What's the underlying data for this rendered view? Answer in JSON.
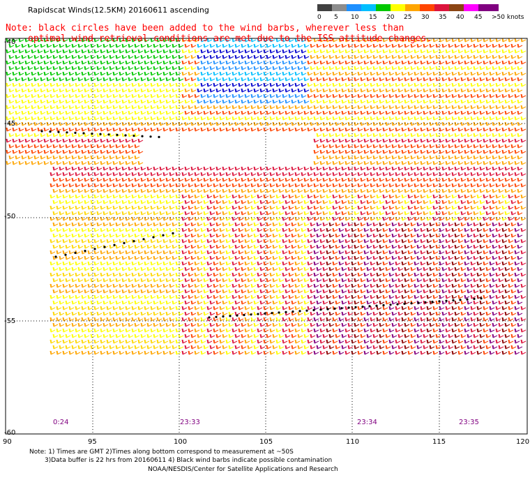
{
  "header": {
    "title": "Rapidscat Winds(12.5KM) 20160611 ascending",
    "note_line1": "Note: black circles have been added to the wind barbs, wherever less than",
    "note_line2": "optimal wind retrieval conditions are met due to the ISS attitude changes."
  },
  "colorbar": {
    "labels": [
      "0",
      "5",
      "10",
      "15",
      "20",
      "25",
      "30",
      "35",
      "40",
      "45",
      ">50 knots"
    ],
    "colors": [
      "#404040",
      "#8c8c8c",
      "#1e90ff",
      "#00bfff",
      "#00c800",
      "#ffff00",
      "#ffa500",
      "#ff4500",
      "#dc143c",
      "#8b4513",
      "#ff00ff",
      "#800080"
    ]
  },
  "axes": {
    "lat_labels": [
      "-40",
      "-45",
      "-50",
      "-55",
      "-60"
    ],
    "lon_labels": [
      "90",
      "95",
      "100",
      "105",
      "110",
      "115",
      "120"
    ]
  },
  "time_labels": [
    "0:24",
    "23:33",
    "23:34",
    "23:35"
  ],
  "footer": {
    "line1": "Note: 1) Times are GMT 2)Times along bottom correspond to measurement at ~50S",
    "line2": "3)Data buffer is 22 hrs from 20160611 4) Black wind barbs indicate possible contamination",
    "line3": "NOAA/NESDIS/Center for Satellite Applications and Research"
  }
}
